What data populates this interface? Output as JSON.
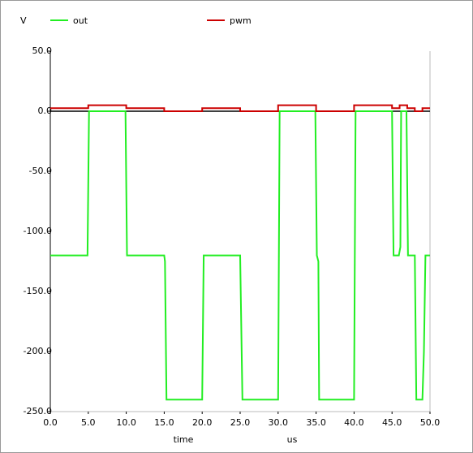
{
  "chart_data": {
    "type": "line",
    "y_unit": "V",
    "x_label": "time",
    "x_unit": "us",
    "xlim": [
      0,
      50
    ],
    "ylim": [
      -250,
      50
    ],
    "xticks": [
      {
        "value": 0,
        "label": "0.0"
      },
      {
        "value": 5,
        "label": "5.0"
      },
      {
        "value": 10,
        "label": "10.0"
      },
      {
        "value": 15,
        "label": "15.0"
      },
      {
        "value": 20,
        "label": "20.0"
      },
      {
        "value": 25,
        "label": "25.0"
      },
      {
        "value": 30,
        "label": "30.0"
      },
      {
        "value": 35,
        "label": "35.0"
      },
      {
        "value": 40,
        "label": "40.0"
      },
      {
        "value": 45,
        "label": "45.0"
      },
      {
        "value": 50,
        "label": "50.0"
      }
    ],
    "yticks": [
      {
        "value": 50,
        "label": "50.0"
      },
      {
        "value": 0,
        "label": "0.0"
      },
      {
        "value": -50,
        "label": "-50.0"
      },
      {
        "value": -100,
        "label": "-100.0"
      },
      {
        "value": -150,
        "label": "-150.0"
      },
      {
        "value": -200,
        "label": "-200.0"
      },
      {
        "value": -250,
        "label": "-250.0"
      }
    ],
    "series": [
      {
        "name": "out",
        "color": "#22ee22",
        "x": [
          0,
          4.9,
          5.1,
          9.9,
          10.1,
          15.0,
          15.1,
          15.3,
          20.0,
          20.2,
          25.0,
          25.3,
          30.0,
          30.2,
          34.9,
          35.1,
          35.3,
          35.4,
          40.0,
          40.2,
          45.0,
          45.2,
          45.9,
          46.1,
          46.2,
          46.9,
          47.1,
          48.0,
          48.2,
          49.0,
          49.2,
          49.4,
          50
        ],
        "values": [
          -120,
          -120,
          0,
          0,
          -120,
          -120,
          -125,
          -240,
          -240,
          -120,
          -120,
          -240,
          -240,
          0,
          0,
          -120,
          -125,
          -240,
          -240,
          0,
          0,
          -120,
          -120,
          -113,
          0,
          0,
          -120,
          -120,
          -240,
          -240,
          -200,
          -120,
          -120
        ]
      },
      {
        "name": "pwm",
        "color": "#cc0000",
        "x": [
          0,
          5,
          5,
          10,
          10,
          15,
          15,
          20,
          20,
          25,
          25,
          30,
          30,
          35,
          35,
          40,
          40,
          45,
          45,
          46,
          46,
          47,
          47,
          48,
          48,
          49,
          49,
          50
        ],
        "values": [
          2.5,
          2.5,
          5,
          5,
          2.5,
          2.5,
          0,
          0,
          2.5,
          2.5,
          0,
          0,
          5,
          5,
          0,
          0,
          5,
          5,
          2.5,
          2.5,
          5,
          5,
          2.5,
          2.5,
          0,
          0,
          2.5,
          2.5
        ]
      }
    ]
  }
}
